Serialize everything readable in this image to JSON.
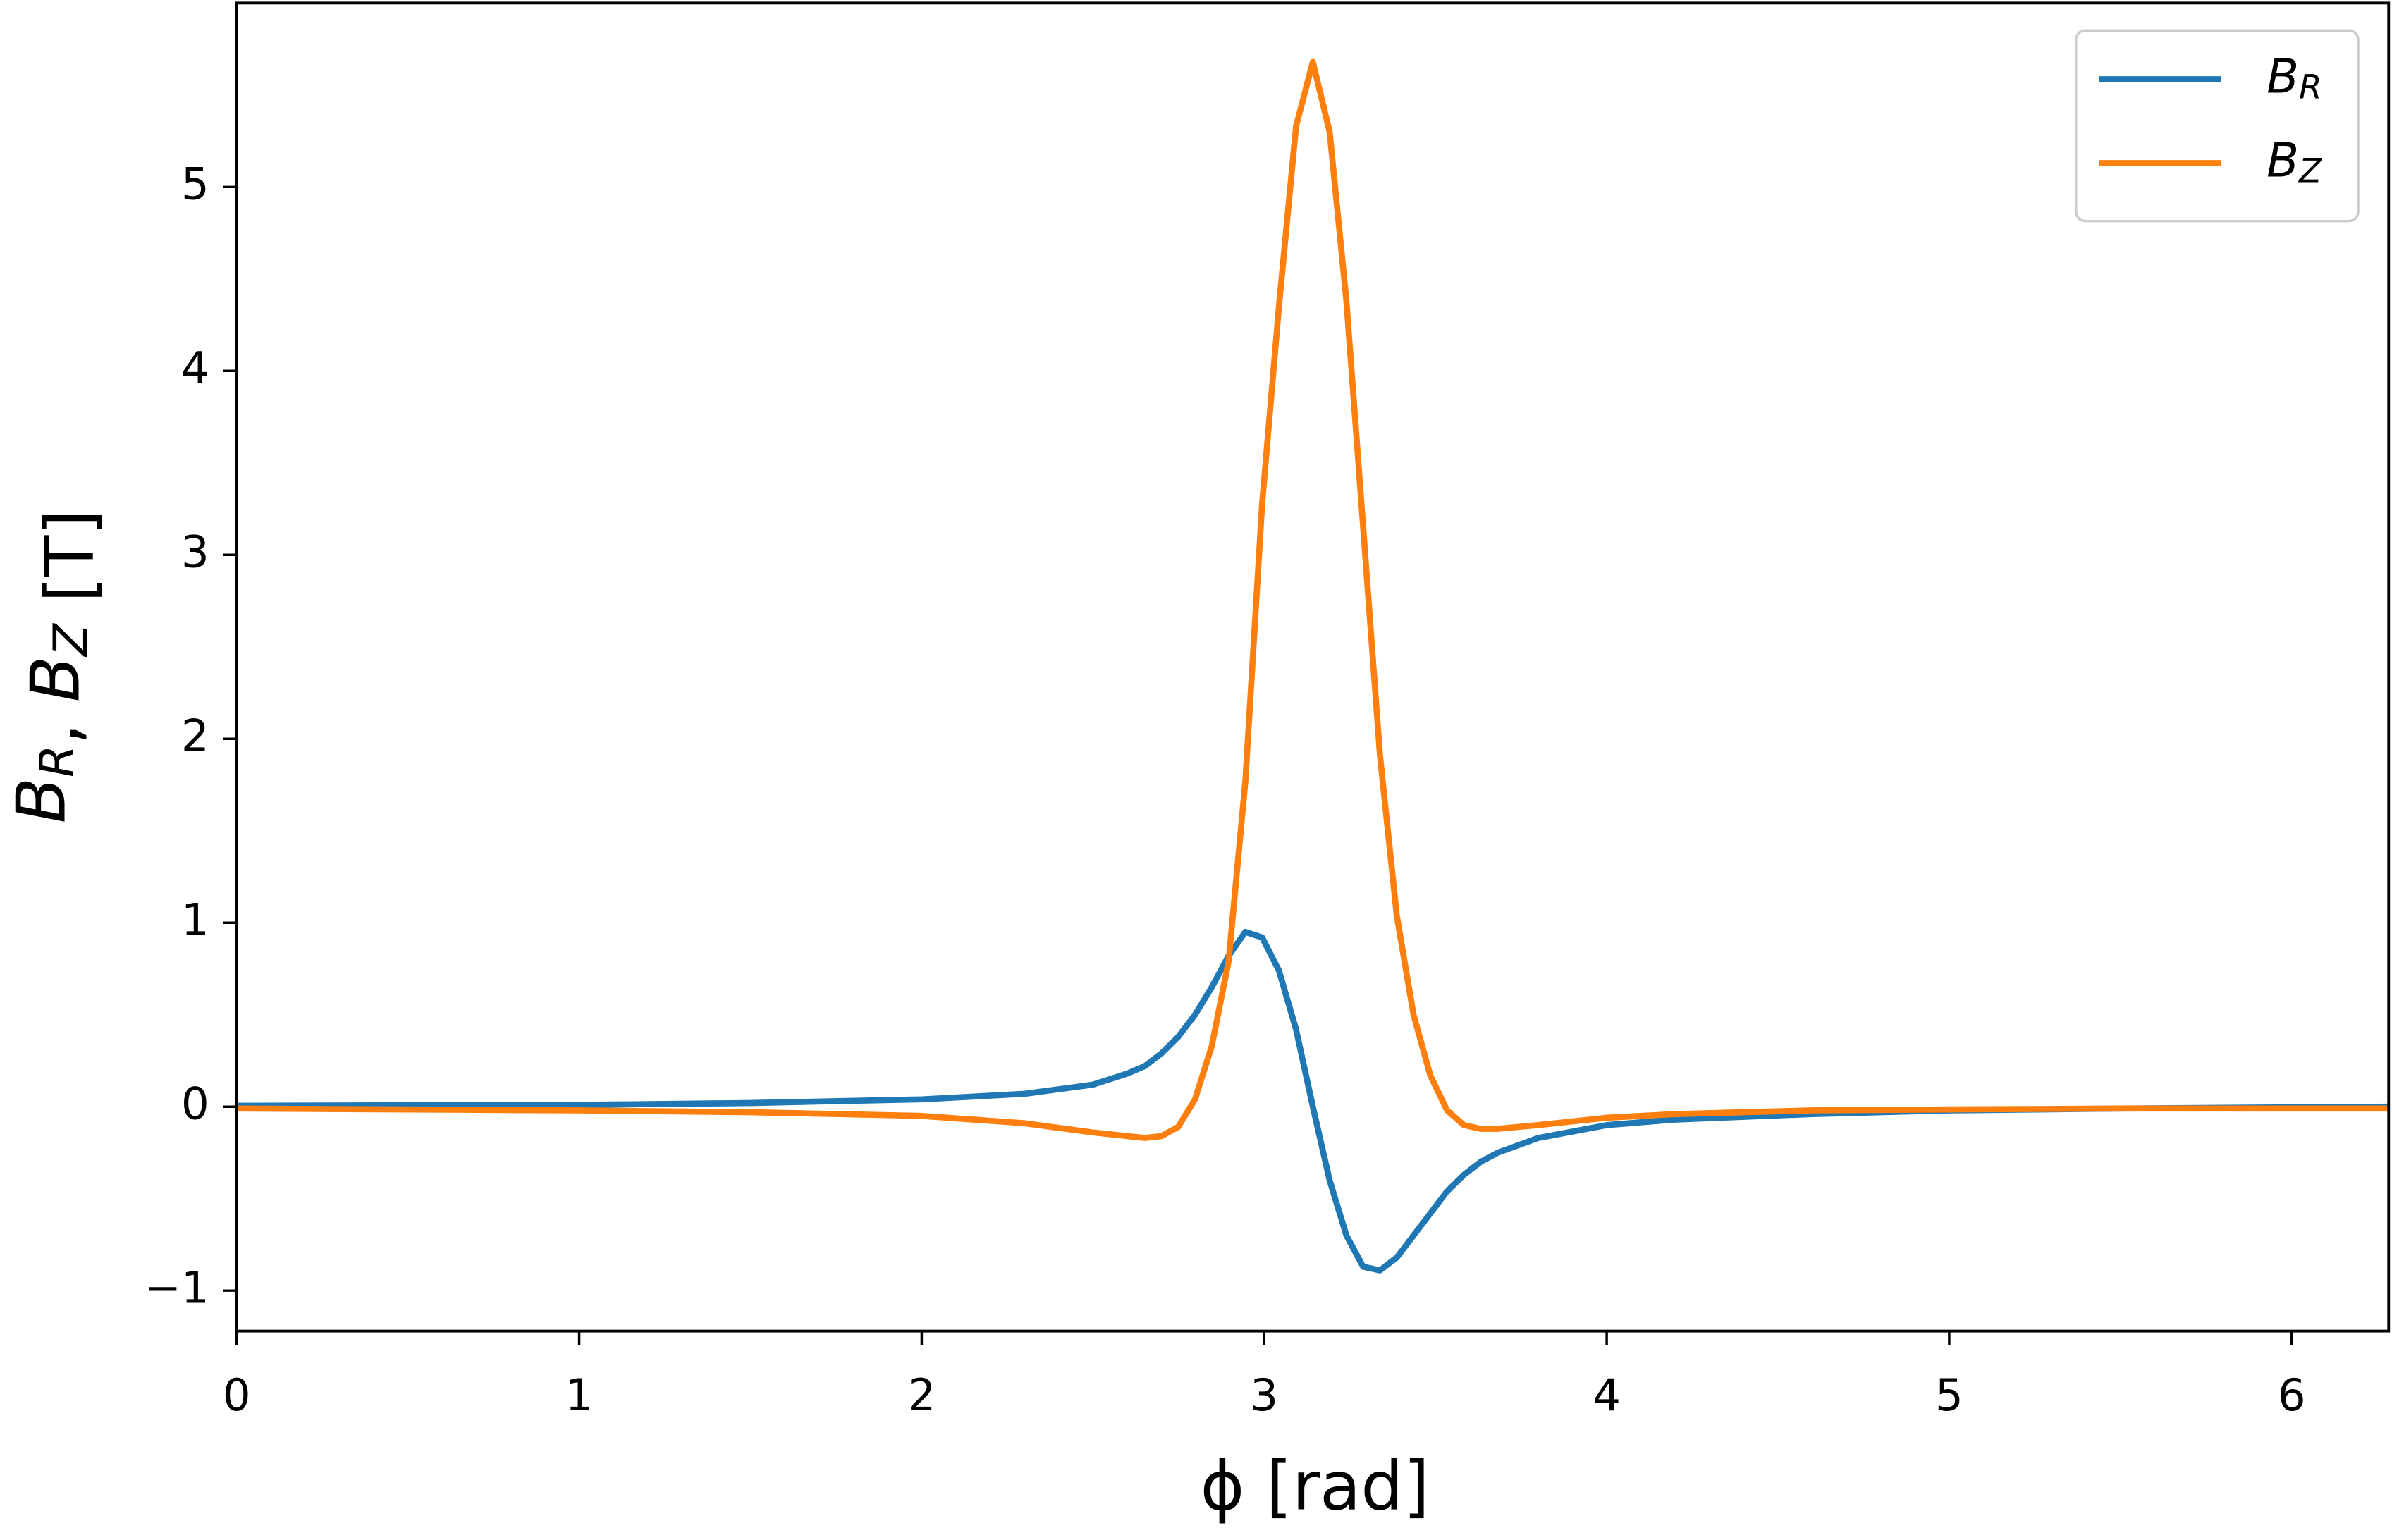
{
  "chart_data": {
    "type": "line",
    "x_label": "ϕ [rad]",
    "y_label": "B_R, B_Z [T]",
    "x": [
      0,
      1.0,
      1.5,
      2.0,
      2.3,
      2.5,
      2.6,
      2.651,
      2.7,
      2.749,
      2.798,
      2.847,
      2.896,
      2.945,
      2.994,
      3.043,
      3.093,
      3.142,
      3.191,
      3.24,
      3.289,
      3.338,
      3.387,
      3.436,
      3.485,
      3.534,
      3.583,
      3.632,
      3.682,
      3.8,
      4.0,
      4.2,
      4.6,
      5.0,
      5.5,
      6.283
    ],
    "series": [
      {
        "name": "B_R",
        "color": "#1f77b4",
        "values": [
          0.005,
          0.01,
          0.02,
          0.04,
          0.07,
          0.12,
          0.18,
          0.22,
          0.29,
          0.38,
          0.5,
          0.65,
          0.82,
          0.95,
          0.92,
          0.74,
          0.42,
          0.0,
          -0.4,
          -0.7,
          -0.87,
          -0.89,
          -0.82,
          -0.7,
          -0.58,
          -0.46,
          -0.37,
          -0.3,
          -0.25,
          -0.17,
          -0.1,
          -0.07,
          -0.04,
          -0.02,
          -0.01,
          0.0
        ]
      },
      {
        "name": "B_Z",
        "color": "#ff7f0e",
        "values": [
          -0.01,
          -0.02,
          -0.03,
          -0.05,
          -0.09,
          -0.14,
          -0.16,
          -0.17,
          -0.16,
          -0.11,
          0.04,
          0.33,
          0.79,
          1.77,
          3.28,
          4.35,
          5.33,
          5.68,
          5.3,
          4.38,
          3.15,
          1.91,
          1.04,
          0.5,
          0.17,
          -0.02,
          -0.1,
          -0.12,
          -0.12,
          -0.1,
          -0.06,
          -0.04,
          -0.02,
          -0.015,
          -0.01,
          -0.01
        ]
      }
    ],
    "xlim": [
      0,
      6.283
    ],
    "ylim": [
      -1.22,
      6.0
    ],
    "xticks": [
      0,
      1,
      2,
      3,
      4,
      5,
      6
    ],
    "yticks": [
      {
        "value": -1,
        "label": "−1"
      },
      0,
      1,
      2,
      3,
      4,
      5
    ],
    "grid": false,
    "legend": "upper right"
  }
}
